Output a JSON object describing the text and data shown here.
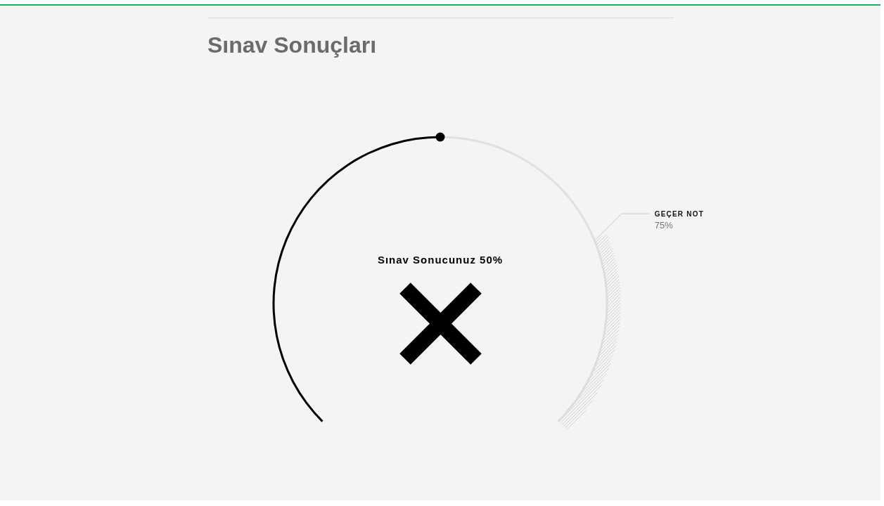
{
  "chart_data": {
    "type": "donut",
    "title": "Sınav Sonuçları",
    "categories": [
      null,
      null,
      null
    ],
    "values": [
      50,
      25,
      25
    ],
    "colors": [
      "#000000",
      "#e0e0e0",
      "#e0e0e0"
    ],
    "annotations": [
      "Sınav Sonucunuz 50%",
      "GEÇER NOT",
      "75%"
    ]
  }
}
